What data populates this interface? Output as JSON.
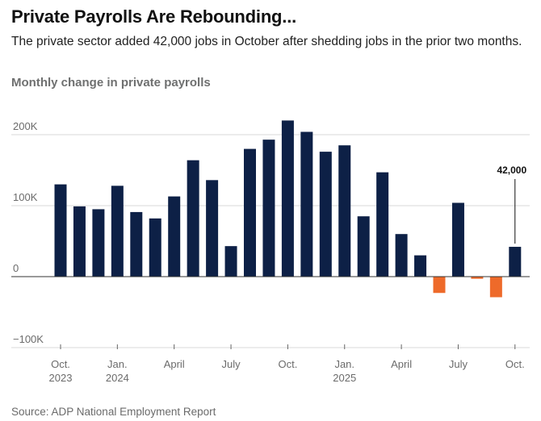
{
  "header": {
    "title": "Private Payrolls Are Rebounding...",
    "subtitle": "The private sector added 42,000 jobs in October after shedding jobs in the prior two months.",
    "chart_label": "Monthly change in private payrolls"
  },
  "footer": {
    "source": "Source: ADP National Employment Report"
  },
  "colors": {
    "positive": "#0d2046",
    "negative": "#ee6a2a",
    "gridline": "#d9d9d9",
    "zeroline": "#333333"
  },
  "chart_data": {
    "type": "bar",
    "title": "Monthly change in private payrolls",
    "xlabel": "",
    "ylabel": "",
    "ylim": [
      -100000,
      220000
    ],
    "yticks": [
      {
        "value": 200000,
        "label": "200K"
      },
      {
        "value": 100000,
        "label": "100K"
      },
      {
        "value": 0,
        "label": "0"
      },
      {
        "value": -100000,
        "label": "−100K"
      }
    ],
    "grid": true,
    "categories": [
      "Oct 2023",
      "Nov 2023",
      "Dec 2023",
      "Jan 2024",
      "Feb 2024",
      "Mar 2024",
      "Apr 2024",
      "May 2024",
      "Jun 2024",
      "Jul 2024",
      "Aug 2024",
      "Sep 2024",
      "Oct 2024",
      "Nov 2024",
      "Dec 2024",
      "Jan 2025",
      "Feb 2025",
      "Mar 2025",
      "Apr 2025",
      "May 2025",
      "Jun 2025",
      "Jul 2025",
      "Aug 2025",
      "Sep 2025",
      "Oct 2025"
    ],
    "values": [
      130000,
      99000,
      95000,
      128000,
      91000,
      82000,
      113000,
      164000,
      136000,
      43000,
      180000,
      193000,
      220000,
      204000,
      176000,
      185000,
      85000,
      147000,
      60000,
      30000,
      -23000,
      104000,
      -3000,
      -29000,
      42000
    ],
    "xtick_labels": [
      {
        "index": 0,
        "line1": "Oct.",
        "line2": "2023"
      },
      {
        "index": 3,
        "line1": "Jan.",
        "line2": "2024"
      },
      {
        "index": 6,
        "line1": "April",
        "line2": ""
      },
      {
        "index": 9,
        "line1": "July",
        "line2": ""
      },
      {
        "index": 12,
        "line1": "Oct.",
        "line2": ""
      },
      {
        "index": 15,
        "line1": "Jan.",
        "line2": "2025"
      },
      {
        "index": 18,
        "line1": "April",
        "line2": ""
      },
      {
        "index": 21,
        "line1": "July",
        "line2": ""
      },
      {
        "index": 24,
        "line1": "Oct.",
        "line2": ""
      }
    ],
    "annotation": {
      "index": 24,
      "text": "42,000"
    }
  }
}
